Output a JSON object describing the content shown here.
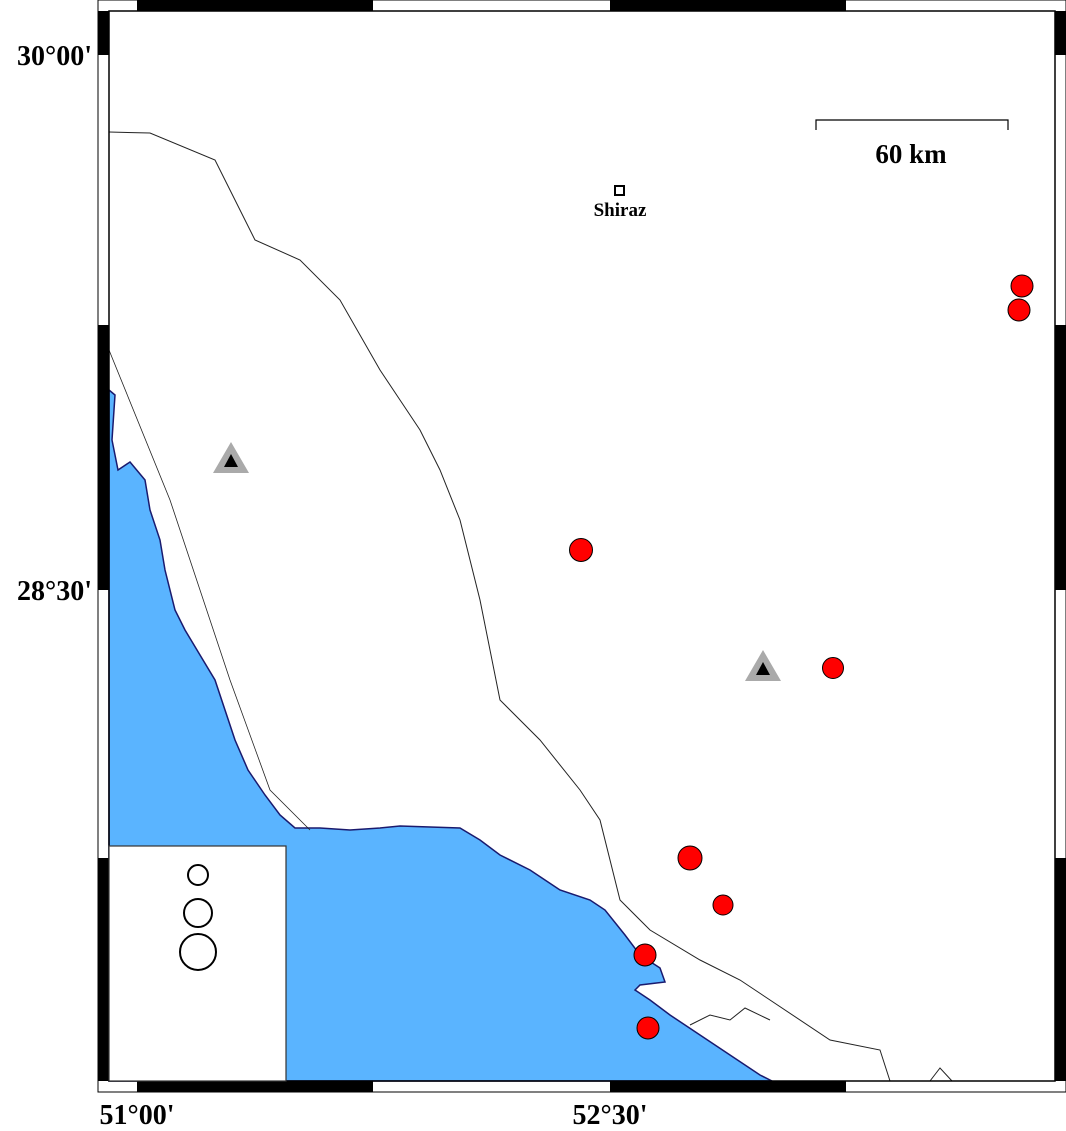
{
  "map": {
    "colors": {
      "sea": "#5ab4ff",
      "coast": "#1a1a6e",
      "event": "#ff0000",
      "station": "#000000",
      "station_halo": "#aaaaaa"
    },
    "lat_labels": [
      "30°00'",
      "28°30'"
    ],
    "lon_labels": [
      "51°00'",
      "52°30'"
    ],
    "city": {
      "name": "Shiraz",
      "icon": "square-icon"
    },
    "scale_bar": {
      "label": "60 km"
    },
    "events_count": 8,
    "stations_count": 2,
    "legend": {
      "symbols": [
        "small-circle-icon",
        "medium-circle-icon",
        "large-circle-icon"
      ]
    }
  }
}
